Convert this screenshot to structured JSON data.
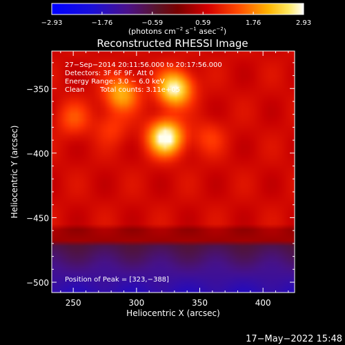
{
  "chart_data": {
    "type": "heatmap",
    "title": "Reconstructed RHESSI Image",
    "xlabel": "Heliocentric X (arcsec)",
    "ylabel": "Heliocentric Y (arcsec)",
    "xlim": [
      233,
      425
    ],
    "ylim": [
      -508,
      -321
    ],
    "x_ticks": [
      250,
      300,
      350,
      400
    ],
    "y_ticks": [
      -350,
      -400,
      -450,
      -500
    ],
    "x_tick_labels": [
      "250",
      "300",
      "350",
      "400"
    ],
    "y_tick_labels": [
      "−350",
      "−400",
      "−450",
      "−500"
    ],
    "colorbar": {
      "range": [
        -2.93,
        2.93
      ],
      "ticks": [
        -2.93,
        -1.76,
        -0.59,
        0.59,
        1.76,
        2.93
      ],
      "tick_labels": [
        "−2.93",
        "−1.76",
        "−0.59",
        "0.59",
        "1.76",
        "2.93"
      ],
      "unit_parts": [
        "(photons cm",
        "−2",
        " s",
        "−1",
        " asec",
        "−2",
        ")"
      ],
      "colormap": "red temperature"
    },
    "annotations": {
      "time_range": "27−Sep−2014 20:11:56.000 to 20:17:56.000",
      "detectors": "Detectors: 3F 6F 9F, Att 0",
      "energy_range": "Energy Range: 3.0 − 6.0 keV",
      "clean": "Clean",
      "total_counts": "Total counts: 3.11e+05",
      "peak_position": "Position of Peak = [323,−388]"
    },
    "sources": [
      {
        "x": 323,
        "y": -388,
        "peak": 2.9
      },
      {
        "x": 330,
        "y": -350,
        "peak": 2.55
      },
      {
        "x": 288,
        "y": -354,
        "peak": 1.6
      },
      {
        "x": 250,
        "y": -373,
        "peak": 0.7
      },
      {
        "x": 357,
        "y": -388,
        "peak": 0.5
      },
      {
        "x": 280,
        "y": -380,
        "peak": 0.5
      }
    ],
    "background_level": -0.15,
    "peak": {
      "x": 323,
      "y": -388
    }
  },
  "footer": {
    "date_stamp": "17−May−2022 15:48"
  },
  "colors": {
    "background": "#000000",
    "axis": "#ffffff",
    "text": "#ffffff"
  }
}
